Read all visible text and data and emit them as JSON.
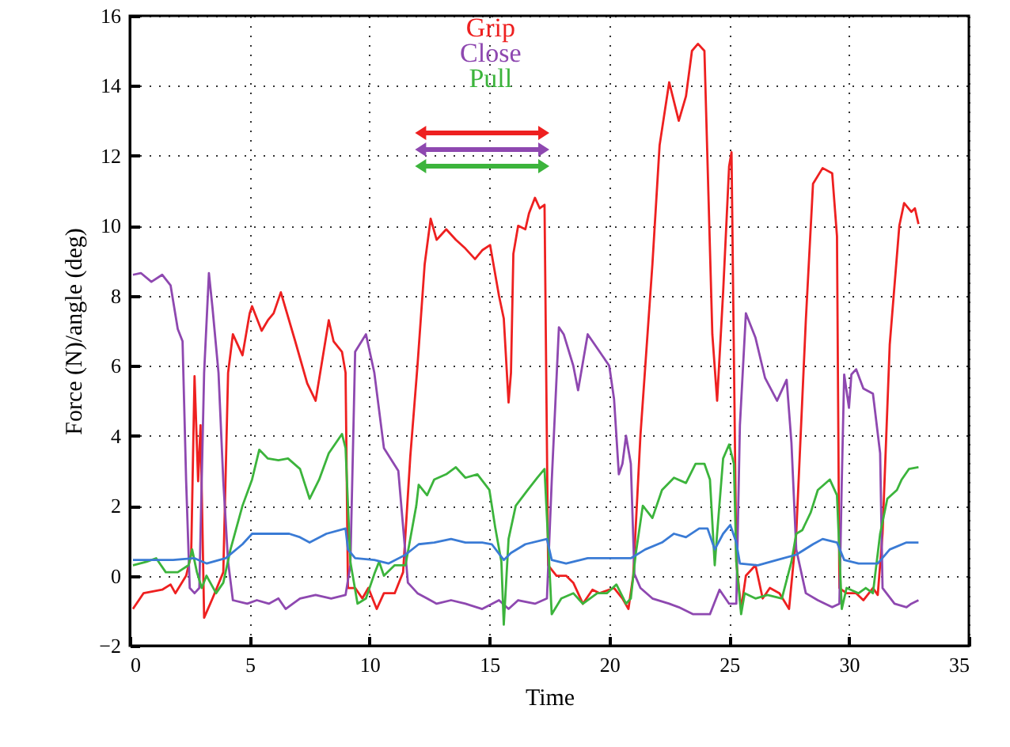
{
  "chart_data": {
    "type": "line",
    "xlabel": "Time",
    "ylabel": "Force (N)/angle (deg)",
    "xlim": [
      0,
      35
    ],
    "xticks": [
      0,
      5,
      10,
      15,
      20,
      25,
      30,
      35
    ],
    "ylim": [
      -2,
      16
    ],
    "yticks": [
      -2,
      0,
      2,
      4,
      6,
      8,
      10,
      12,
      14,
      16
    ],
    "grid": true,
    "legend": "top",
    "line_style": "solid",
    "series": [
      {
        "name": "Grip",
        "color": "#ee2020",
        "x": [
          0.13,
          0.57,
          1.35,
          1.7,
          1.9,
          2.35,
          2.56,
          2.7,
          2.85,
          2.95,
          3.1,
          3.45,
          3.9,
          4.1,
          4.3,
          4.7,
          5.0,
          5.1,
          5.5,
          5.76,
          6.0,
          6.3,
          6.9,
          7.4,
          7.75,
          8.3,
          8.5,
          8.85,
          9.0,
          9.1,
          9.4,
          9.7,
          9.95,
          10.3,
          10.6,
          11.05,
          11.4,
          11.7,
          12.0,
          12.3,
          12.55,
          12.8,
          13.2,
          13.6,
          14.0,
          14.4,
          14.7,
          15.03,
          15.4,
          15.6,
          15.8,
          15.9,
          16.0,
          16.2,
          16.5,
          16.65,
          16.9,
          17.1,
          17.3,
          17.45,
          17.8,
          18.2,
          18.5,
          18.9,
          19.3,
          19.6,
          20.2,
          20.55,
          20.8,
          21.0,
          21.3,
          21.8,
          22.1,
          22.5,
          22.9,
          23.2,
          23.45,
          23.7,
          23.97,
          24.3,
          24.5,
          24.75,
          25.0,
          25.1,
          25.3,
          25.5,
          25.7,
          26.1,
          26.4,
          26.7,
          27.1,
          27.5,
          27.8,
          28.2,
          28.5,
          28.9,
          29.3,
          29.5,
          29.6,
          29.9,
          30.3,
          30.6,
          31.0,
          31.2,
          31.4,
          31.7,
          32.1,
          32.3,
          32.6,
          32.75,
          32.9
        ],
        "values": [
          -0.95,
          -0.5,
          -0.4,
          -0.25,
          -0.5,
          0,
          0.6,
          5.7,
          2.7,
          4.3,
          -1.2,
          -0.65,
          0.1,
          5.8,
          6.9,
          6.3,
          7.5,
          7.7,
          7.0,
          7.3,
          7.5,
          8.1,
          6.7,
          5.5,
          5.0,
          7.3,
          6.7,
          6.4,
          5.8,
          -0.35,
          -0.35,
          -0.65,
          -0.35,
          -0.95,
          -0.5,
          -0.5,
          0.1,
          3.4,
          6.0,
          8.9,
          10.2,
          9.6,
          9.9,
          9.6,
          9.35,
          9.05,
          9.3,
          9.45,
          8.0,
          7.35,
          4.95,
          5.8,
          9.2,
          10.0,
          9.9,
          10.35,
          10.8,
          10.5,
          10.6,
          0.3,
          0,
          0,
          -0.2,
          -0.8,
          -0.4,
          -0.5,
          -0.35,
          -0.65,
          -0.95,
          0,
          4.0,
          8.9,
          12.3,
          14.1,
          13.0,
          13.7,
          15.0,
          15.2,
          15.0,
          6.9,
          5.0,
          8.1,
          11.7,
          12.1,
          0.4,
          -0.95,
          0,
          0.3,
          -0.65,
          -0.35,
          -0.5,
          -0.95,
          1.2,
          7.3,
          11.2,
          11.65,
          11.5,
          9.7,
          -0.35,
          -0.5,
          -0.5,
          -0.7,
          -0.35,
          -0.55,
          1.2,
          6.6,
          10.0,
          10.65,
          10.4,
          10.5,
          10.05
        ]
      },
      {
        "name": "Close",
        "color": "#8e48b0",
        "x": [
          0.13,
          0.46,
          0.9,
          1.35,
          1.7,
          2.0,
          2.2,
          2.35,
          2.5,
          2.7,
          2.9,
          3.1,
          3.3,
          3.45,
          3.7,
          3.9,
          4.1,
          4.3,
          4.9,
          5.3,
          5.8,
          6.2,
          6.5,
          7.1,
          7.75,
          8.4,
          9.0,
          9.2,
          9.4,
          9.85,
          10.2,
          10.6,
          11.2,
          11.6,
          12.0,
          12.4,
          12.8,
          13.4,
          14.0,
          14.7,
          15.4,
          15.8,
          16.2,
          16.9,
          17.4,
          17.6,
          17.9,
          18.1,
          18.5,
          18.7,
          19.1,
          19.6,
          20.0,
          20.2,
          20.4,
          20.55,
          20.7,
          20.9,
          21.05,
          21.3,
          21.8,
          22.5,
          22.9,
          23.5,
          23.8,
          24.2,
          24.6,
          25.0,
          25.3,
          25.45,
          25.7,
          26.1,
          26.5,
          27.0,
          27.4,
          27.6,
          27.8,
          28.2,
          28.7,
          29.3,
          29.6,
          29.7,
          29.8,
          30.0,
          30.1,
          30.3,
          30.6,
          31.0,
          31.3,
          31.4,
          31.9,
          32.4,
          32.6,
          32.9
        ],
        "values": [
          8.6,
          8.65,
          8.4,
          8.6,
          8.3,
          7.05,
          6.7,
          2.7,
          -0.35,
          -0.5,
          -0.35,
          5.8,
          8.65,
          7.65,
          5.8,
          2.7,
          0.4,
          -0.7,
          -0.8,
          -0.7,
          -0.8,
          -0.65,
          -0.95,
          -0.65,
          -0.55,
          -0.65,
          -0.55,
          0.3,
          6.4,
          6.9,
          5.8,
          3.65,
          3.0,
          -0.2,
          -0.5,
          -0.65,
          -0.8,
          -0.7,
          -0.8,
          -0.95,
          -0.7,
          -0.95,
          -0.7,
          -0.8,
          -0.65,
          2.7,
          7.1,
          6.9,
          6.0,
          5.3,
          6.9,
          6.4,
          6.0,
          5.05,
          2.9,
          3.2,
          4.0,
          3.2,
          0.05,
          -0.35,
          -0.65,
          -0.8,
          -0.9,
          -1.1,
          -1.1,
          -1.1,
          -0.4,
          -0.8,
          -0.8,
          4.3,
          7.5,
          6.8,
          5.65,
          5.0,
          5.6,
          3.8,
          0.75,
          -0.5,
          -0.7,
          -0.9,
          -0.8,
          2.7,
          5.75,
          4.8,
          5.75,
          5.9,
          5.35,
          5.2,
          3.5,
          -0.35,
          -0.8,
          -0.9,
          -0.8,
          -0.7
        ]
      },
      {
        "name": "Pull",
        "color": "#3cb43c",
        "x": [
          0.13,
          0.7,
          1.1,
          1.5,
          2.0,
          2.45,
          2.6,
          2.8,
          3.0,
          3.2,
          3.6,
          3.9,
          4.2,
          4.7,
          5.1,
          5.4,
          5.76,
          6.2,
          6.6,
          7.1,
          7.5,
          7.9,
          8.3,
          8.85,
          9.0,
          9.2,
          9.5,
          9.85,
          10.2,
          10.4,
          10.6,
          11.05,
          11.5,
          11.95,
          12.05,
          12.4,
          12.7,
          13.2,
          13.6,
          14.0,
          14.5,
          15.0,
          15.25,
          15.5,
          15.6,
          15.8,
          16.1,
          16.6,
          17.0,
          17.3,
          17.6,
          18.0,
          18.5,
          18.9,
          19.5,
          19.9,
          20.3,
          20.7,
          20.9,
          21.1,
          21.4,
          21.8,
          22.2,
          22.7,
          23.2,
          23.6,
          23.97,
          24.2,
          24.4,
          24.5,
          24.75,
          25.0,
          25.2,
          25.3,
          25.5,
          25.65,
          26.1,
          26.6,
          27.2,
          27.6,
          27.8,
          28.05,
          28.4,
          28.7,
          29.2,
          29.5,
          29.7,
          29.9,
          30.4,
          30.7,
          31.0,
          31.3,
          31.6,
          32.0,
          32.2,
          32.5,
          32.9
        ],
        "values": [
          0.3,
          0.4,
          0.5,
          0.1,
          0.1,
          0.3,
          0.75,
          0.1,
          -0.35,
          0,
          -0.5,
          -0.2,
          0.75,
          2.0,
          2.75,
          3.6,
          3.35,
          3.3,
          3.35,
          3.05,
          2.2,
          2.75,
          3.5,
          4.05,
          3.65,
          0.4,
          -0.8,
          -0.65,
          0.05,
          0.4,
          0,
          0.3,
          0.3,
          2.0,
          2.6,
          2.3,
          2.75,
          2.9,
          3.1,
          2.8,
          2.9,
          2.45,
          1.35,
          0.4,
          -1.4,
          1.05,
          2.0,
          2.45,
          2.8,
          3.05,
          -1.1,
          -0.65,
          -0.5,
          -0.8,
          -0.5,
          -0.5,
          -0.25,
          -0.8,
          -0.65,
          0.6,
          2.0,
          1.65,
          2.45,
          2.8,
          2.65,
          3.2,
          3.2,
          2.75,
          0.3,
          1.2,
          3.35,
          3.75,
          3.2,
          0.4,
          -1.1,
          -0.5,
          -0.65,
          -0.55,
          -0.65,
          0.4,
          1.2,
          1.3,
          1.8,
          2.45,
          2.75,
          2.3,
          -0.95,
          -0.35,
          -0.5,
          -0.35,
          -0.5,
          1.2,
          2.2,
          2.45,
          2.75,
          3.05,
          3.1
        ]
      },
      {
        "color": "#3a7bd5",
        "x": [
          0.13,
          0.9,
          1.8,
          2.7,
          3.2,
          4.0,
          4.7,
          5.1,
          5.65,
          6.2,
          6.65,
          7.1,
          7.5,
          8.2,
          9.0,
          9.1,
          9.4,
          10.2,
          10.8,
          11.5,
          12.05,
          12.7,
          13.4,
          14.0,
          14.7,
          15.1,
          15.6,
          15.9,
          16.5,
          17.4,
          17.6,
          18.2,
          19.1,
          20.0,
          20.9,
          21.5,
          22.2,
          22.7,
          23.2,
          23.75,
          24.1,
          24.4,
          24.75,
          25.05,
          25.3,
          25.45,
          26.2,
          27.0,
          27.8,
          28.5,
          28.9,
          29.5,
          29.8,
          30.4,
          31.2,
          31.7,
          32.4,
          32.9
        ],
        "values": [
          0.45,
          0.45,
          0.45,
          0.5,
          0.35,
          0.5,
          0.9,
          1.2,
          1.2,
          1.2,
          1.2,
          1.1,
          0.95,
          1.2,
          1.35,
          0.75,
          0.5,
          0.45,
          0.35,
          0.6,
          0.9,
          0.95,
          1.05,
          0.95,
          0.95,
          0.9,
          0.45,
          0.65,
          0.9,
          1.05,
          0.45,
          0.35,
          0.5,
          0.5,
          0.5,
          0.75,
          0.95,
          1.2,
          1.1,
          1.35,
          1.35,
          0.75,
          1.2,
          1.45,
          0.95,
          0.35,
          0.3,
          0.45,
          0.6,
          0.9,
          1.05,
          0.95,
          0.45,
          0.35,
          0.35,
          0.75,
          0.95,
          0.95
        ]
      }
    ]
  }
}
